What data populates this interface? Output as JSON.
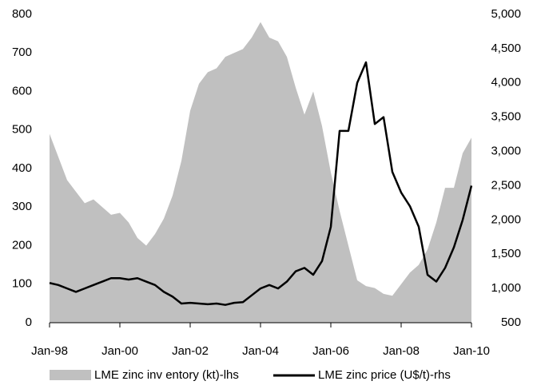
{
  "chart_data": {
    "type": "area-line",
    "categories": [
      "Jan-98",
      null,
      null,
      null,
      null,
      null,
      null,
      null,
      "Jan-00",
      null,
      null,
      null,
      null,
      null,
      null,
      null,
      "Jan-02",
      null,
      null,
      null,
      null,
      null,
      null,
      null,
      "Jan-04",
      null,
      null,
      null,
      null,
      null,
      null,
      null,
      "Jan-06",
      null,
      null,
      null,
      null,
      null,
      null,
      null,
      "Jan-08",
      null,
      null,
      null,
      null,
      null,
      null,
      null,
      "Jan-10"
    ],
    "series": [
      {
        "name": "LME zinc inv entory  (kt)-lhs",
        "type": "area",
        "color": "#c0c0c0",
        "values": [
          490,
          430,
          370,
          340,
          310,
          320,
          300,
          280,
          285,
          260,
          220,
          200,
          230,
          270,
          330,
          420,
          550,
          620,
          650,
          660,
          690,
          700,
          710,
          740,
          780,
          740,
          730,
          690,
          610,
          540,
          600,
          510,
          390,
          290,
          200,
          110,
          95,
          90,
          75,
          70,
          100,
          130,
          150,
          190,
          260,
          350,
          350,
          440,
          480
        ]
      },
      {
        "name": "LME zinc price (U$/t)-rhs",
        "type": "line",
        "axis": "y2",
        "color": "#000000",
        "values": [
          1080,
          1050,
          1000,
          950,
          1000,
          1050,
          1100,
          1150,
          1150,
          1130,
          1150,
          1100,
          1050,
          950,
          880,
          780,
          790,
          780,
          770,
          780,
          760,
          790,
          800,
          900,
          1000,
          1050,
          1000,
          1100,
          1250,
          1300,
          1200,
          1400,
          1900,
          3300,
          3300,
          4000,
          4300,
          3400,
          3500,
          2700,
          2400,
          2200,
          1900,
          1200,
          1100,
          1300,
          1600,
          2000,
          2500
        ]
      }
    ],
    "ylim": [
      0,
      800
    ],
    "yticks": [
      0,
      100,
      200,
      300,
      400,
      500,
      600,
      700,
      800
    ],
    "y2lim": [
      500,
      5000
    ],
    "y2ticks": [
      500,
      {
        "value": 1000,
        "label": "1,000"
      },
      {
        "value": 1500,
        "label": "1,500"
      },
      {
        "value": 2000,
        "label": "2,000"
      },
      {
        "value": 2500,
        "label": "2,500"
      },
      {
        "value": 3000,
        "label": "3,000"
      },
      {
        "value": 3500,
        "label": "3,500"
      },
      {
        "value": 4000,
        "label": "4,000"
      },
      {
        "value": 4500,
        "label": "4,500"
      },
      {
        "value": 5000,
        "label": "5,000"
      }
    ],
    "legend": "bottom",
    "grid": false
  }
}
